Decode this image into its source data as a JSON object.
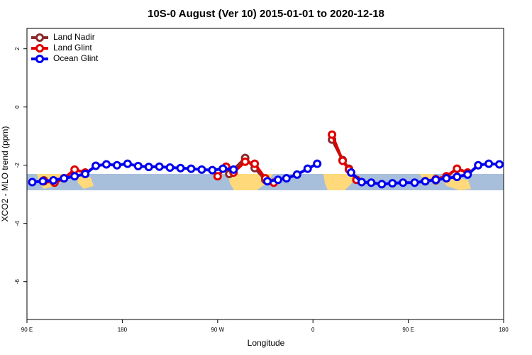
{
  "chart_data": {
    "type": "line",
    "title": "10S-0 August (Ver 10)   2015-01-01 to 2020-12-18",
    "xlabel": "Longitude",
    "ylabel": "XCO2 - MLO trend (ppm)",
    "xlim": [
      90,
      540
    ],
    "xticks": [
      {
        "value": 90,
        "label": "90 E"
      },
      {
        "value": 180,
        "label": "180"
      },
      {
        "value": 270,
        "label": "90 W"
      },
      {
        "value": 360,
        "label": "0"
      },
      {
        "value": 450,
        "label": "90 E"
      },
      {
        "value": 540,
        "label": "180"
      }
    ],
    "ylim": [
      -7.3,
      2.7
    ],
    "yticks": [
      -6,
      -4,
      -2,
      0,
      2
    ],
    "legend": "top-left",
    "series": [
      {
        "name": "Land Nadir",
        "color": "#8b2a2a",
        "x": [
          106,
          116,
          null,
          281,
          296,
          305,
          315,
          null,
          378,
          388,
          394,
          null,
          476,
          486
        ],
        "values": [
          -2.52,
          -2.55,
          null,
          -2.3,
          -1.75,
          -2.1,
          -2.5,
          null,
          -1.12,
          -1.82,
          -2.12,
          null,
          -2.52,
          -2.42
        ]
      },
      {
        "name": "Land Glint",
        "color": "#e00000",
        "x": [
          106,
          116,
          125,
          135,
          145,
          null,
          270,
          278,
          285,
          296,
          305,
          315,
          323,
          null,
          378,
          388,
          394,
          401,
          null,
          466,
          476,
          486,
          496,
          506
        ],
        "values": [
          -2.55,
          -2.6,
          -2.45,
          -2.15,
          -2.25,
          null,
          -2.38,
          -2.05,
          -2.25,
          -1.88,
          -1.95,
          -2.45,
          -2.6,
          null,
          -0.95,
          -1.85,
          -2.15,
          -2.5,
          null,
          -2.55,
          -2.48,
          -2.38,
          -2.12,
          -2.25
        ]
      },
      {
        "name": "Ocean Glint",
        "color": "#0000ee",
        "x": [
          95,
          105,
          115,
          125,
          135,
          145,
          155,
          165,
          175,
          185,
          195,
          205,
          215,
          225,
          235,
          245,
          255,
          265,
          275,
          285,
          null,
          317,
          327,
          335,
          345,
          355,
          364,
          null,
          396,
          406,
          415,
          425,
          435,
          445,
          456,
          466,
          476,
          486,
          496,
          506,
          516,
          526,
          536
        ],
        "values": [
          -2.58,
          -2.55,
          -2.52,
          -2.45,
          -2.38,
          -2.3,
          -2.02,
          -1.97,
          -2.0,
          -1.95,
          -2.03,
          -2.06,
          -2.05,
          -2.08,
          -2.1,
          -2.12,
          -2.15,
          -2.17,
          -2.12,
          -2.15,
          null,
          -2.55,
          -2.5,
          -2.45,
          -2.32,
          -2.12,
          -1.95,
          null,
          -2.25,
          -2.58,
          -2.6,
          -2.65,
          -2.62,
          -2.6,
          -2.6,
          -2.55,
          -2.5,
          -2.45,
          -2.4,
          -2.32,
          -2.0,
          -1.95,
          -1.97
        ]
      }
    ]
  }
}
